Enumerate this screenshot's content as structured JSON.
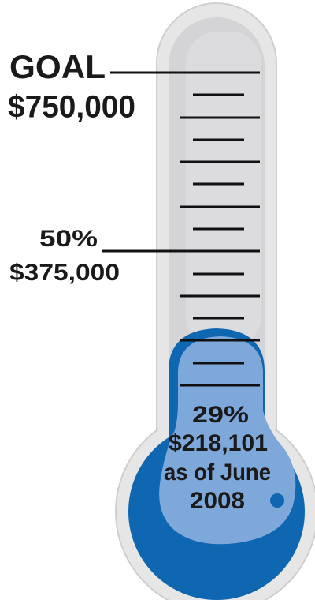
{
  "goal": {
    "label": "GOAL",
    "amount": "$750,000"
  },
  "midpoint": {
    "label": "50%",
    "amount": "$375,000"
  },
  "progress": {
    "percent": "29%",
    "amount": "$218,101",
    "date_line_1": "as of June",
    "date_line_2": "2008"
  }
}
